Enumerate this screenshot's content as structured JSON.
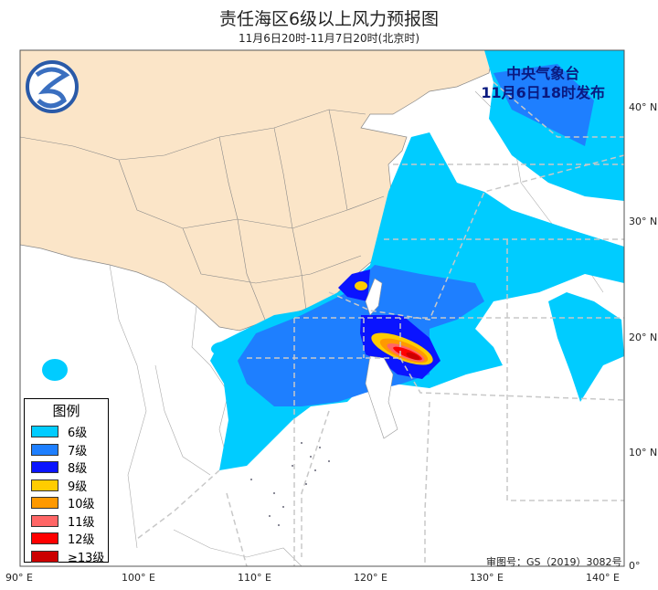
{
  "header": {
    "title": "责任海区6级以上风力预报图",
    "subtitle": "11月6日20时-11月7日20时(北京时)"
  },
  "issuer": {
    "line1": "中央气象台",
    "line2": "11月6日18时发布"
  },
  "legend": {
    "title": "图例",
    "items": [
      {
        "label": "6级",
        "color": "#00CCFF"
      },
      {
        "label": "7级",
        "color": "#1E7FFF"
      },
      {
        "label": "8级",
        "color": "#0A14FF"
      },
      {
        "label": "9级",
        "color": "#FFCC00"
      },
      {
        "label": "10级",
        "color": "#FF9900"
      },
      {
        "label": "11级",
        "color": "#FF6666"
      },
      {
        "label": "12级",
        "color": "#FF0000"
      },
      {
        "label": "≥13级",
        "color": "#CC0000"
      }
    ]
  },
  "approval": "审图号：GS（2019）3082号",
  "axes": {
    "lon_labels": [
      "90° E",
      "100° E",
      "110° E",
      "120° E",
      "130° E",
      "140° E"
    ],
    "lat_labels": [
      "0°",
      "10° N",
      "20° N",
      "30° N",
      "40° N"
    ]
  },
  "colors": {
    "land_china": "#FBE5C8",
    "boundary": "#bbbbbb",
    "sea_area_lines": "#c8c8c8"
  }
}
